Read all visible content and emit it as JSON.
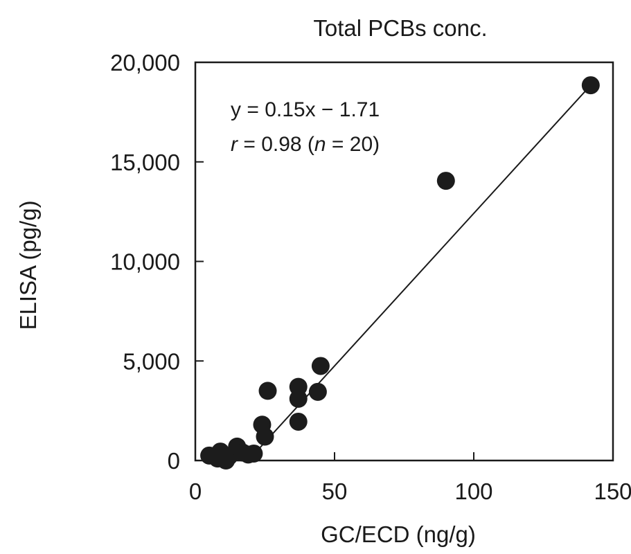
{
  "chart_data": {
    "type": "scatter",
    "title": "Total PCBs conc.",
    "xlabel": "GC/ECD (ng/g)",
    "ylabel": "ELISA (pg/g)",
    "xlim": [
      0,
      150
    ],
    "ylim": [
      0,
      20000
    ],
    "x_ticks": [
      0,
      50,
      100,
      150
    ],
    "x_tick_labels": [
      "0",
      "50",
      "100",
      "150"
    ],
    "y_ticks": [
      0,
      5000,
      10000,
      15000,
      20000
    ],
    "y_tick_labels": [
      "0",
      "5,000",
      "10,000",
      "15,000",
      "20,000"
    ],
    "grid": false,
    "points": [
      {
        "x": 5,
        "y": 250
      },
      {
        "x": 9,
        "y": 450
      },
      {
        "x": 10,
        "y": 150
      },
      {
        "x": 11,
        "y": 0
      },
      {
        "x": 12,
        "y": 200
      },
      {
        "x": 15,
        "y": 700
      },
      {
        "x": 17,
        "y": 400
      },
      {
        "x": 19,
        "y": 300
      },
      {
        "x": 21,
        "y": 350
      },
      {
        "x": 24,
        "y": 1800
      },
      {
        "x": 25,
        "y": 1200
      },
      {
        "x": 26,
        "y": 3500
      },
      {
        "x": 37,
        "y": 3700
      },
      {
        "x": 37,
        "y": 3100
      },
      {
        "x": 37,
        "y": 1950
      },
      {
        "x": 44,
        "y": 3450
      },
      {
        "x": 45,
        "y": 4750
      },
      {
        "x": 90,
        "y": 14050
      },
      {
        "x": 142,
        "y": 18850
      },
      {
        "x": 8,
        "y": 100
      }
    ],
    "fit_line": {
      "x_start": 19,
      "y_start": 0,
      "x_end": 142,
      "y_end": 18850
    },
    "annotation": {
      "equation": "y = 0.15x − 1.71",
      "stat_prefix": "r",
      "stat_mid": " = 0.98 (",
      "n_symbol": "n",
      "n_suffix": " = 20)"
    }
  }
}
